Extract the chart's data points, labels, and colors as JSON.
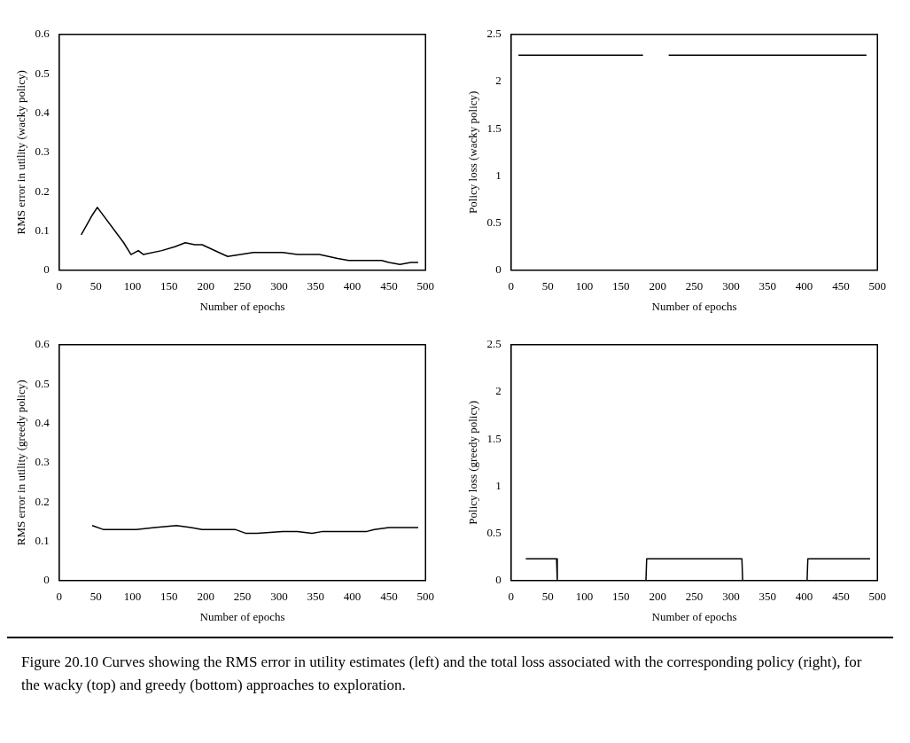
{
  "chart_data": [
    {
      "type": "line",
      "ylabel": "RMS error in utility (wacky policy)",
      "xlabel": "Number of epochs",
      "color": "#000000",
      "x": [
        30,
        45,
        52,
        88,
        98,
        108,
        115,
        140,
        158,
        172,
        185,
        195,
        230,
        265,
        305,
        325,
        345,
        355,
        380,
        395,
        410,
        430,
        440,
        450,
        465,
        480,
        490
      ],
      "values": [
        0.09,
        0.14,
        0.16,
        0.07,
        0.04,
        0.05,
        0.04,
        0.05,
        0.06,
        0.07,
        0.065,
        0.065,
        0.035,
        0.045,
        0.045,
        0.04,
        0.04,
        0.04,
        0.03,
        0.025,
        0.025,
        0.025,
        0.025,
        0.02,
        0.015,
        0.02,
        0.02
      ],
      "xlim": [
        0,
        500
      ],
      "ylim": [
        0,
        0.6
      ],
      "xticks": [
        0,
        50,
        100,
        150,
        200,
        250,
        300,
        350,
        400,
        450,
        500
      ],
      "yticks": [
        0,
        0.1,
        0.2,
        0.3,
        0.4,
        0.5,
        0.6
      ]
    },
    {
      "type": "line",
      "ylabel": "Policy loss (wacky policy)",
      "xlabel": "Number of epochs",
      "color": "#000000",
      "x": [
        10,
        180,
        200,
        215,
        485
      ],
      "values": [
        2.28,
        2.28,
        null,
        2.28,
        2.28
      ],
      "xlim": [
        0,
        500
      ],
      "ylim": [
        0,
        2.5
      ],
      "xticks": [
        0,
        50,
        100,
        150,
        200,
        250,
        300,
        350,
        400,
        450,
        500
      ],
      "yticks": [
        0,
        0.5,
        1,
        1.5,
        2,
        2.5
      ]
    },
    {
      "type": "line",
      "ylabel": "RMS error in utility (greedy policy)",
      "xlabel": "Number of epochs",
      "color": "#000000",
      "x": [
        45,
        60,
        90,
        105,
        130,
        160,
        180,
        195,
        215,
        240,
        255,
        270,
        305,
        325,
        345,
        360,
        375,
        400,
        420,
        430,
        450,
        470,
        490
      ],
      "values": [
        0.14,
        0.13,
        0.13,
        0.13,
        0.135,
        0.14,
        0.135,
        0.13,
        0.13,
        0.13,
        0.12,
        0.12,
        0.125,
        0.125,
        0.12,
        0.125,
        0.125,
        0.125,
        0.125,
        0.13,
        0.135,
        0.135,
        0.135
      ],
      "xlim": [
        0,
        500
      ],
      "ylim": [
        0,
        0.6
      ],
      "xticks": [
        0,
        50,
        100,
        150,
        200,
        250,
        300,
        350,
        400,
        450,
        500
      ],
      "yticks": [
        0,
        0.1,
        0.2,
        0.3,
        0.4,
        0.5,
        0.6
      ]
    },
    {
      "type": "line",
      "ylabel": "Policy loss (greedy policy)",
      "xlabel": "Number of epochs",
      "color": "#000000",
      "x": [
        20,
        62,
        63,
        184,
        185,
        315,
        316,
        404,
        405,
        490
      ],
      "values": [
        0.23,
        0.23,
        0,
        0,
        0.23,
        0.23,
        0,
        0,
        0.23,
        0.23
      ],
      "xlim": [
        0,
        500
      ],
      "ylim": [
        0,
        2.5
      ],
      "xticks": [
        0,
        50,
        100,
        150,
        200,
        250,
        300,
        350,
        400,
        450,
        500
      ],
      "yticks": [
        0,
        0.5,
        1,
        1.5,
        2,
        2.5
      ],
      "annotations": [
        "Figure 20.10    Curves showing the RMS error in utility estimates (left) and the total loss associated with the corresponding policy (right), for the wacky (top) and greedy (bottom) approaches to exploration."
      ]
    }
  ]
}
